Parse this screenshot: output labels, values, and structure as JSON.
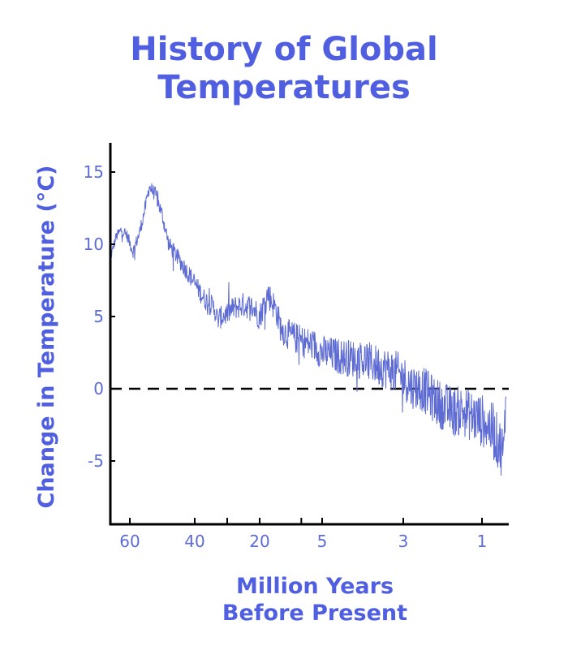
{
  "chart_data": {
    "type": "line",
    "title_lines": [
      "History of Global",
      "Temperatures"
    ],
    "xlabel_lines": [
      "Million Years",
      "Before Present"
    ],
    "ylabel": "Change in Temperature (°C)",
    "x_scale": "piecewise (compressed toward present)",
    "x_tick_labels": [
      "60",
      "40",
      "20",
      "5",
      "3",
      "1"
    ],
    "x_tick_values": [
      60,
      40,
      20,
      5,
      3,
      1
    ],
    "y_ticks": [
      15,
      10,
      5,
      0,
      -5
    ],
    "ylim": [
      -9.5,
      17
    ],
    "xlim_myr": [
      67,
      0
    ],
    "reference_line": {
      "y": 0,
      "style": "dashed"
    },
    "grid": false,
    "legend": "none",
    "series": [
      {
        "x": [
          67,
          65,
          63,
          61,
          59,
          57,
          55,
          54,
          52,
          50,
          48,
          45,
          42,
          40,
          37,
          34,
          33,
          30,
          28,
          25,
          22,
          20,
          18,
          16,
          15,
          14,
          12,
          10,
          7,
          5,
          4.5,
          4,
          3.5,
          3.2,
          3,
          2.8,
          2.5,
          2.2,
          2,
          1.7,
          1.5,
          1.2,
          1,
          0.7,
          0.5,
          0.3,
          0.1,
          0
        ],
        "y": [
          9,
          10.5,
          11,
          10.6,
          9.5,
          10.8,
          12.8,
          14,
          13.4,
          12,
          10,
          9,
          8,
          7.3,
          6.2,
          5.6,
          4.8,
          5.2,
          5.6,
          5.8,
          5.6,
          5,
          6.6,
          5.4,
          4.3,
          3.9,
          3.6,
          3.3,
          3,
          2.5,
          2.2,
          2,
          1.5,
          1.2,
          0.8,
          0.2,
          0,
          -0.8,
          -1.2,
          -1.6,
          -1.5,
          -2,
          -2.2,
          -2.6,
          -3.2,
          -3.8,
          -4.5,
          0.8
        ]
      }
    ],
    "colors": {
      "series": "#5d6bd2",
      "title": "#4f5fe0",
      "ticks": "#5e6cd6",
      "axes": "#000000",
      "reference_line": "#000000"
    }
  }
}
